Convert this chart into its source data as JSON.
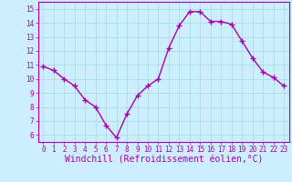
{
  "x": [
    0,
    1,
    2,
    3,
    4,
    5,
    6,
    7,
    8,
    9,
    10,
    11,
    12,
    13,
    14,
    15,
    16,
    17,
    18,
    19,
    20,
    21,
    22,
    23
  ],
  "y": [
    10.9,
    10.6,
    10.0,
    9.5,
    8.5,
    8.0,
    6.7,
    5.8,
    7.5,
    8.8,
    9.5,
    10.0,
    12.2,
    13.8,
    14.8,
    14.8,
    14.1,
    14.1,
    13.9,
    12.7,
    11.5,
    10.5,
    10.1,
    9.5
  ],
  "line_color": "#aa00aa",
  "marker": "+",
  "marker_size": 4,
  "bg_color": "#cceeff",
  "grid_color": "#aadddd",
  "xlabel": "Windchill (Refroidissement éolien,°C)",
  "xlim": [
    -0.5,
    23.5
  ],
  "ylim": [
    5.5,
    15.5
  ],
  "yticks": [
    6,
    7,
    8,
    9,
    10,
    11,
    12,
    13,
    14,
    15
  ],
  "xticks": [
    0,
    1,
    2,
    3,
    4,
    5,
    6,
    7,
    8,
    9,
    10,
    11,
    12,
    13,
    14,
    15,
    16,
    17,
    18,
    19,
    20,
    21,
    22,
    23
  ],
  "tick_color": "#aa00aa",
  "tick_fontsize": 5.5,
  "xlabel_fontsize": 7.0,
  "border_color": "#aa00aa",
  "line_width": 1.0,
  "marker_edge_width": 1.0
}
